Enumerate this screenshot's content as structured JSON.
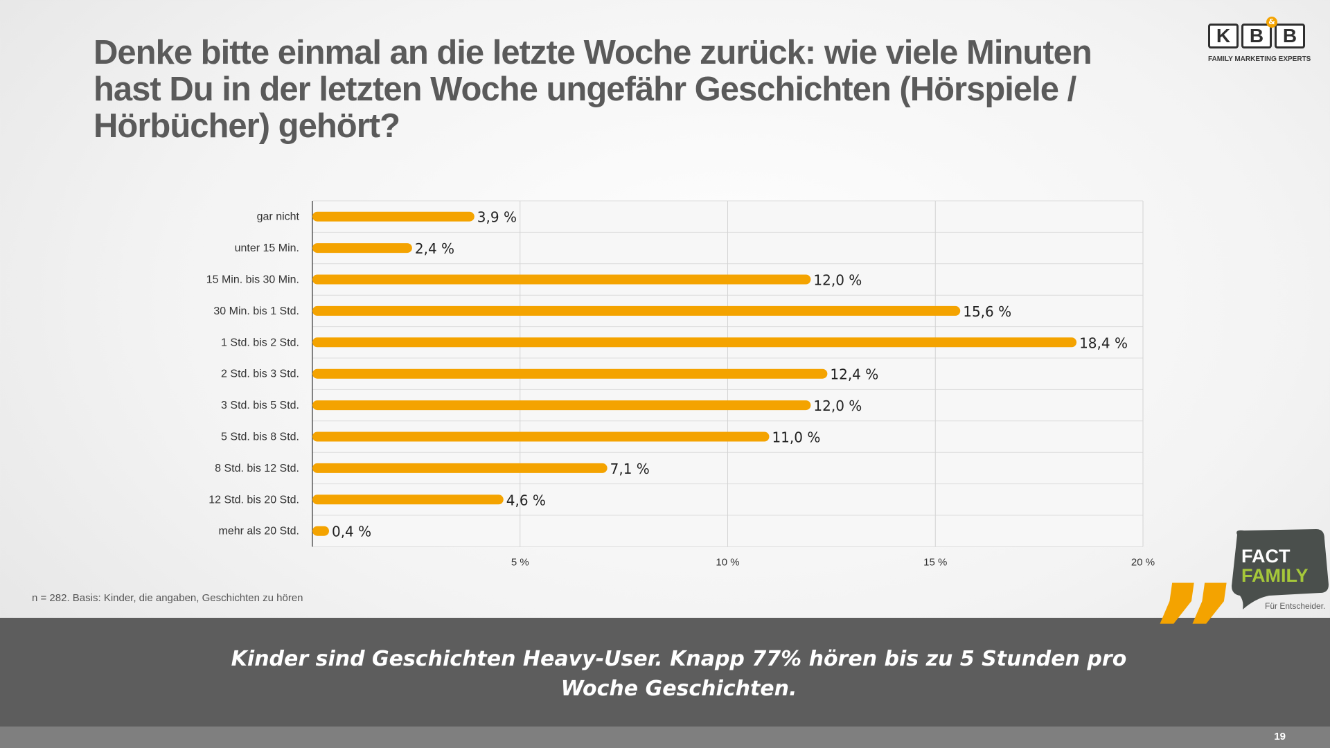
{
  "title": "Denke bitte einmal an die letzte Woche zurück: wie viele Minuten hast Du in der letzten Woche ungefähr Geschichten (Hörspiele / Hörbücher) gehört?",
  "logo": {
    "letters": [
      "K",
      "B",
      "B"
    ],
    "amp": "&",
    "tagline": "FAMILY MARKETING EXPERTS"
  },
  "badge": {
    "line1": "FACT",
    "line2": "FAMILY",
    "subline": "Für Entscheider."
  },
  "footnote": "n = 282. Basis: Kinder, die angaben, Geschichten zu hören",
  "conclusion": "Kinder sind Geschichten Heavy-User. Knapp 77% hören bis zu 5 Stunden pro Woche Geschichten.",
  "page_number": "19",
  "colors": {
    "bar": "#f4a300",
    "band": "#5d5d5d",
    "title": "#5a5a5a"
  },
  "chart_data": {
    "type": "bar",
    "orientation": "horizontal",
    "categories": [
      "gar nicht",
      "unter 15 Min.",
      "15 Min. bis 30 Min.",
      "30 Min. bis 1 Std.",
      "1 Std. bis 2 Std.",
      "2 Std. bis 3 Std.",
      "3 Std. bis 5 Std.",
      "5 Std. bis 8 Std.",
      "8 Std. bis 12 Std.",
      "12 Std. bis 20 Std.",
      "mehr als 20 Std."
    ],
    "values": [
      3.9,
      2.4,
      12.0,
      15.6,
      18.4,
      12.4,
      12.0,
      11.0,
      7.1,
      4.6,
      0.4
    ],
    "value_labels": [
      "3,9 %",
      "2,4 %",
      "12,0 %",
      "15,6 %",
      "18,4 %",
      "12,4 %",
      "12,0 %",
      "11,0 %",
      "7,1 %",
      "4,6 %",
      "0,4 %"
    ],
    "xlim": [
      0,
      20
    ],
    "xticks": [
      5,
      10,
      15,
      20
    ],
    "xtick_labels": [
      "5 %",
      "10 %",
      "15 %",
      "20 %"
    ],
    "grid": true,
    "legend": "none"
  }
}
